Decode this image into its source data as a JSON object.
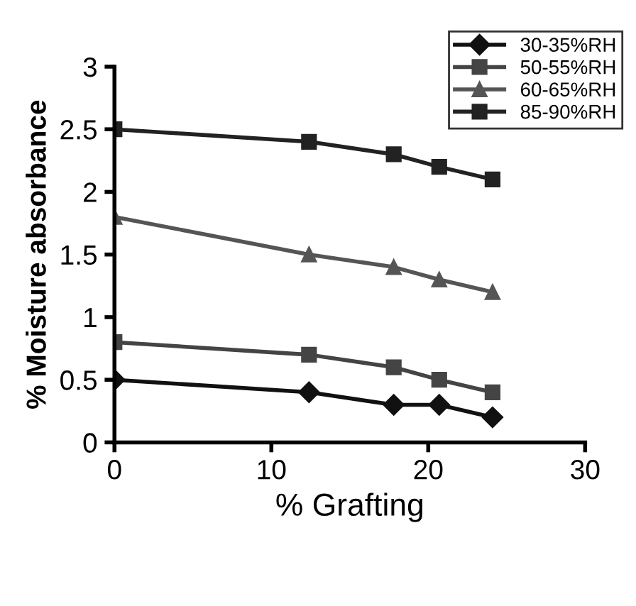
{
  "chart_data": {
    "type": "line",
    "xlabel": "% Grafting",
    "ylabel": "% Moisture absorbance",
    "x": [
      0,
      12.4,
      17.8,
      20.7,
      24.1
    ],
    "series": [
      {
        "name": "30-35%RH",
        "color": "#111111",
        "marker": "diamond",
        "values": [
          0.5,
          0.4,
          0.3,
          0.3,
          0.2
        ]
      },
      {
        "name": "50-55%RH",
        "color": "#444444",
        "marker": "square",
        "values": [
          0.8,
          0.7,
          0.6,
          0.5,
          0.4
        ]
      },
      {
        "name": "60-65%RH",
        "color": "#555555",
        "marker": "triangle",
        "values": [
          1.8,
          1.5,
          1.4,
          1.3,
          1.2
        ]
      },
      {
        "name": "85-90%RH",
        "color": "#222222",
        "marker": "square",
        "values": [
          2.5,
          2.4,
          2.3,
          2.2,
          2.1
        ]
      }
    ],
    "xlim": [
      0,
      30
    ],
    "xticks": [
      0,
      10,
      20,
      30
    ],
    "ylim": [
      0,
      3
    ],
    "yticks": [
      0,
      0.5,
      1,
      1.5,
      2,
      2.5,
      3
    ],
    "grid": false,
    "legend": "top right"
  }
}
